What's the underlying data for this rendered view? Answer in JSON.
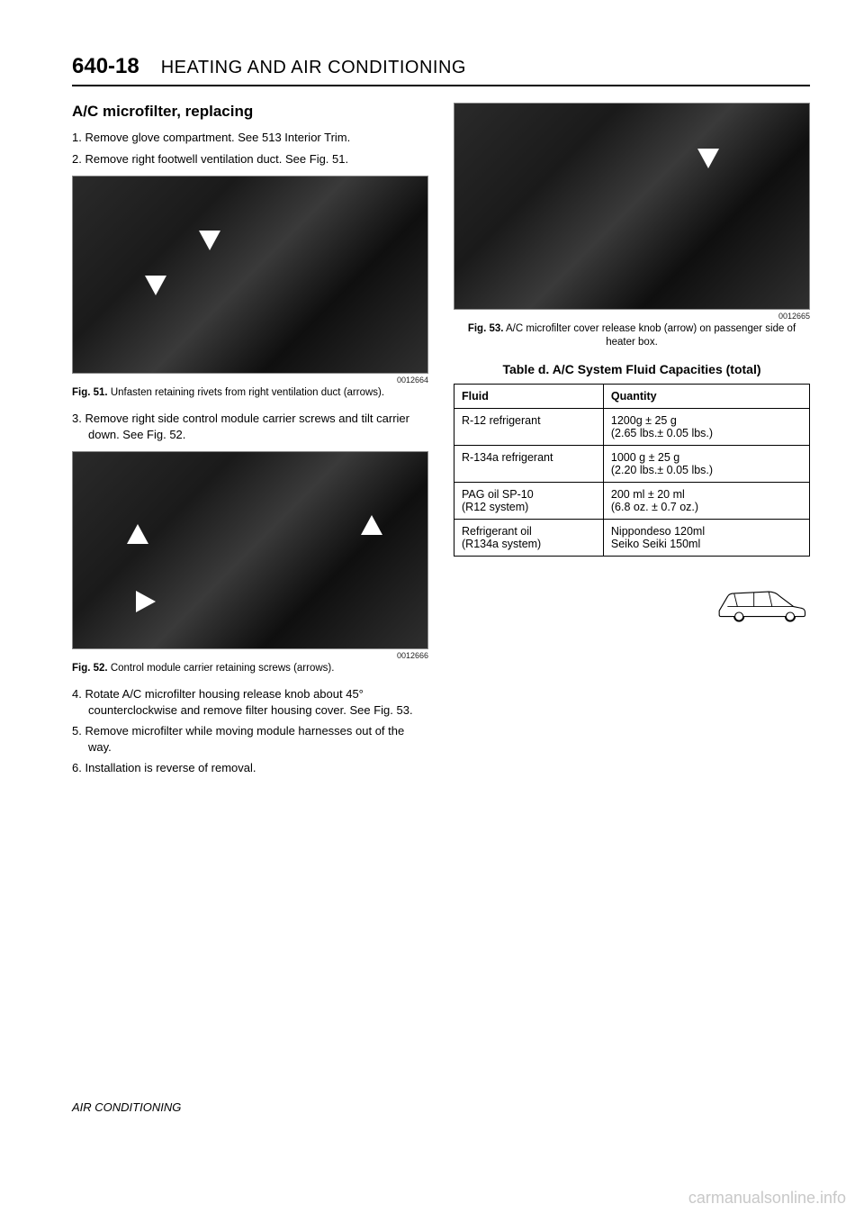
{
  "header": {
    "page_num": "640-18",
    "chapter": "HEATING AND AIR CONDITIONING"
  },
  "section_title": "A/C microfilter, replacing",
  "steps_a": [
    "1. Remove glove compartment. See 513 Interior Trim.",
    "2. Remove right footwell ventilation duct. See Fig. 51."
  ],
  "fig51": {
    "id": "0012664",
    "label": "Fig. 51.",
    "caption": "Unfasten retaining rivets from right ventilation duct (arrows)."
  },
  "steps_b": [
    "3. Remove right side control module carrier screws and tilt carrier down. See Fig. 52."
  ],
  "fig52": {
    "id": "0012666",
    "label": "Fig. 52.",
    "caption": "Control module carrier retaining screws (arrows)."
  },
  "steps_c": [
    "4. Rotate A/C microfilter housing release knob about 45° counterclockwise and remove filter housing cover. See Fig. 53.",
    "5. Remove microfilter while moving module harnesses out of the way.",
    "6. Installation is reverse of removal."
  ],
  "fig53": {
    "id": "0012665",
    "label": "Fig. 53.",
    "caption": "A/C microfilter cover release knob (arrow) on passenger side of heater box."
  },
  "table": {
    "title": "Table d. A/C System Fluid Capacities (total)",
    "columns": [
      "Fluid",
      "Quantity"
    ],
    "rows": [
      {
        "fluid": "R-12 refrigerant",
        "qty": "1200g ± 25 g\n(2.65 lbs.± 0.05 lbs.)"
      },
      {
        "fluid": "R-134a refrigerant",
        "qty": "1000 g ± 25 g\n(2.20 lbs.± 0.05 lbs.)"
      },
      {
        "fluid": "PAG oil SP-10\n(R12 system)",
        "qty": "200 ml ± 20 ml\n(6.8 oz. ± 0.7 oz.)"
      },
      {
        "fluid": "Refrigerant oil\n(R134a system)",
        "qty": "Nippondeso 120ml\nSeiko Seiki 150ml"
      }
    ],
    "col_widths": [
      "42%",
      "58%"
    ],
    "border_color": "#000000",
    "font_size": 12.5
  },
  "footer": "AIR CONDITIONING",
  "watermark": "carmanualsonline.info",
  "colors": {
    "text": "#000000",
    "bg": "#ffffff",
    "watermark": "#c8c8c8",
    "photo_dark": "#1a1a1a"
  }
}
